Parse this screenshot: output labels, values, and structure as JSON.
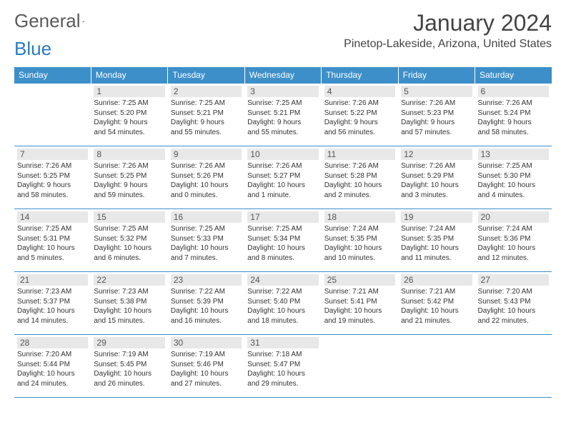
{
  "brand": {
    "part1": "General",
    "part2": "Blue"
  },
  "title": "January 2024",
  "location": "Pinetop-Lakeside, Arizona, United States",
  "colors": {
    "header_bg": "#3d8fc9",
    "header_text": "#ffffff",
    "daynum_bg": "#e8e8e8",
    "border": "#3d8fc9",
    "text": "#333333",
    "logo_gray": "#5a5a5a",
    "logo_blue": "#2a7bbf"
  },
  "day_headers": [
    "Sunday",
    "Monday",
    "Tuesday",
    "Wednesday",
    "Thursday",
    "Friday",
    "Saturday"
  ],
  "weeks": [
    [
      null,
      {
        "n": "1",
        "sr": "Sunrise: 7:25 AM",
        "ss": "Sunset: 5:20 PM",
        "dl1": "Daylight: 9 hours",
        "dl2": "and 54 minutes."
      },
      {
        "n": "2",
        "sr": "Sunrise: 7:25 AM",
        "ss": "Sunset: 5:21 PM",
        "dl1": "Daylight: 9 hours",
        "dl2": "and 55 minutes."
      },
      {
        "n": "3",
        "sr": "Sunrise: 7:25 AM",
        "ss": "Sunset: 5:21 PM",
        "dl1": "Daylight: 9 hours",
        "dl2": "and 55 minutes."
      },
      {
        "n": "4",
        "sr": "Sunrise: 7:26 AM",
        "ss": "Sunset: 5:22 PM",
        "dl1": "Daylight: 9 hours",
        "dl2": "and 56 minutes."
      },
      {
        "n": "5",
        "sr": "Sunrise: 7:26 AM",
        "ss": "Sunset: 5:23 PM",
        "dl1": "Daylight: 9 hours",
        "dl2": "and 57 minutes."
      },
      {
        "n": "6",
        "sr": "Sunrise: 7:26 AM",
        "ss": "Sunset: 5:24 PM",
        "dl1": "Daylight: 9 hours",
        "dl2": "and 58 minutes."
      }
    ],
    [
      {
        "n": "7",
        "sr": "Sunrise: 7:26 AM",
        "ss": "Sunset: 5:25 PM",
        "dl1": "Daylight: 9 hours",
        "dl2": "and 58 minutes."
      },
      {
        "n": "8",
        "sr": "Sunrise: 7:26 AM",
        "ss": "Sunset: 5:25 PM",
        "dl1": "Daylight: 9 hours",
        "dl2": "and 59 minutes."
      },
      {
        "n": "9",
        "sr": "Sunrise: 7:26 AM",
        "ss": "Sunset: 5:26 PM",
        "dl1": "Daylight: 10 hours",
        "dl2": "and 0 minutes."
      },
      {
        "n": "10",
        "sr": "Sunrise: 7:26 AM",
        "ss": "Sunset: 5:27 PM",
        "dl1": "Daylight: 10 hours",
        "dl2": "and 1 minute."
      },
      {
        "n": "11",
        "sr": "Sunrise: 7:26 AM",
        "ss": "Sunset: 5:28 PM",
        "dl1": "Daylight: 10 hours",
        "dl2": "and 2 minutes."
      },
      {
        "n": "12",
        "sr": "Sunrise: 7:26 AM",
        "ss": "Sunset: 5:29 PM",
        "dl1": "Daylight: 10 hours",
        "dl2": "and 3 minutes."
      },
      {
        "n": "13",
        "sr": "Sunrise: 7:25 AM",
        "ss": "Sunset: 5:30 PM",
        "dl1": "Daylight: 10 hours",
        "dl2": "and 4 minutes."
      }
    ],
    [
      {
        "n": "14",
        "sr": "Sunrise: 7:25 AM",
        "ss": "Sunset: 5:31 PM",
        "dl1": "Daylight: 10 hours",
        "dl2": "and 5 minutes."
      },
      {
        "n": "15",
        "sr": "Sunrise: 7:25 AM",
        "ss": "Sunset: 5:32 PM",
        "dl1": "Daylight: 10 hours",
        "dl2": "and 6 minutes."
      },
      {
        "n": "16",
        "sr": "Sunrise: 7:25 AM",
        "ss": "Sunset: 5:33 PM",
        "dl1": "Daylight: 10 hours",
        "dl2": "and 7 minutes."
      },
      {
        "n": "17",
        "sr": "Sunrise: 7:25 AM",
        "ss": "Sunset: 5:34 PM",
        "dl1": "Daylight: 10 hours",
        "dl2": "and 8 minutes."
      },
      {
        "n": "18",
        "sr": "Sunrise: 7:24 AM",
        "ss": "Sunset: 5:35 PM",
        "dl1": "Daylight: 10 hours",
        "dl2": "and 10 minutes."
      },
      {
        "n": "19",
        "sr": "Sunrise: 7:24 AM",
        "ss": "Sunset: 5:35 PM",
        "dl1": "Daylight: 10 hours",
        "dl2": "and 11 minutes."
      },
      {
        "n": "20",
        "sr": "Sunrise: 7:24 AM",
        "ss": "Sunset: 5:36 PM",
        "dl1": "Daylight: 10 hours",
        "dl2": "and 12 minutes."
      }
    ],
    [
      {
        "n": "21",
        "sr": "Sunrise: 7:23 AM",
        "ss": "Sunset: 5:37 PM",
        "dl1": "Daylight: 10 hours",
        "dl2": "and 14 minutes."
      },
      {
        "n": "22",
        "sr": "Sunrise: 7:23 AM",
        "ss": "Sunset: 5:38 PM",
        "dl1": "Daylight: 10 hours",
        "dl2": "and 15 minutes."
      },
      {
        "n": "23",
        "sr": "Sunrise: 7:22 AM",
        "ss": "Sunset: 5:39 PM",
        "dl1": "Daylight: 10 hours",
        "dl2": "and 16 minutes."
      },
      {
        "n": "24",
        "sr": "Sunrise: 7:22 AM",
        "ss": "Sunset: 5:40 PM",
        "dl1": "Daylight: 10 hours",
        "dl2": "and 18 minutes."
      },
      {
        "n": "25",
        "sr": "Sunrise: 7:21 AM",
        "ss": "Sunset: 5:41 PM",
        "dl1": "Daylight: 10 hours",
        "dl2": "and 19 minutes."
      },
      {
        "n": "26",
        "sr": "Sunrise: 7:21 AM",
        "ss": "Sunset: 5:42 PM",
        "dl1": "Daylight: 10 hours",
        "dl2": "and 21 minutes."
      },
      {
        "n": "27",
        "sr": "Sunrise: 7:20 AM",
        "ss": "Sunset: 5:43 PM",
        "dl1": "Daylight: 10 hours",
        "dl2": "and 22 minutes."
      }
    ],
    [
      {
        "n": "28",
        "sr": "Sunrise: 7:20 AM",
        "ss": "Sunset: 5:44 PM",
        "dl1": "Daylight: 10 hours",
        "dl2": "and 24 minutes."
      },
      {
        "n": "29",
        "sr": "Sunrise: 7:19 AM",
        "ss": "Sunset: 5:45 PM",
        "dl1": "Daylight: 10 hours",
        "dl2": "and 26 minutes."
      },
      {
        "n": "30",
        "sr": "Sunrise: 7:19 AM",
        "ss": "Sunset: 5:46 PM",
        "dl1": "Daylight: 10 hours",
        "dl2": "and 27 minutes."
      },
      {
        "n": "31",
        "sr": "Sunrise: 7:18 AM",
        "ss": "Sunset: 5:47 PM",
        "dl1": "Daylight: 10 hours",
        "dl2": "and 29 minutes."
      },
      null,
      null,
      null
    ]
  ]
}
